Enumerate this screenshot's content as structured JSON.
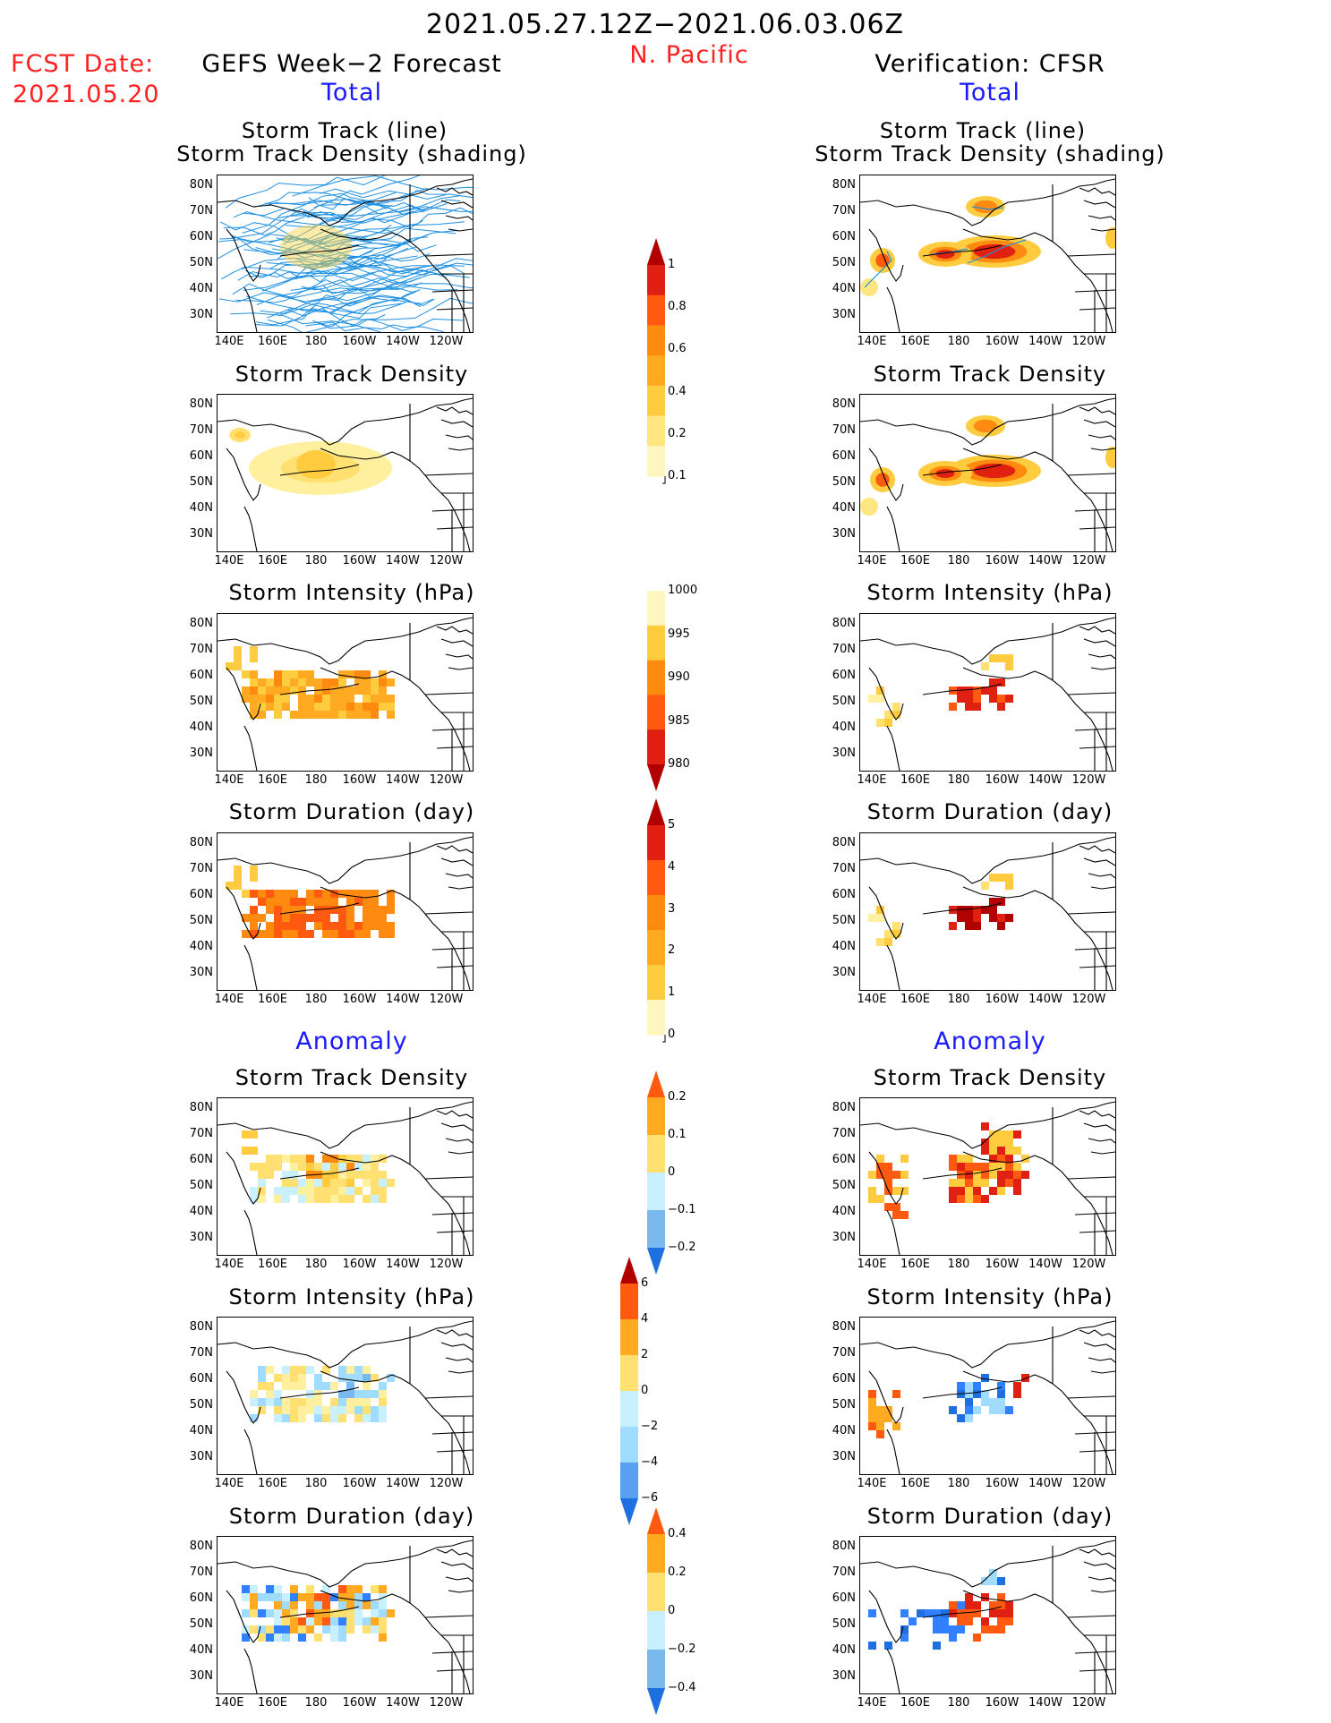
{
  "header": {
    "date_range": "2021.05.27.12Z−2021.06.03.06Z",
    "region": "N. Pacific",
    "fcst_label": "FCST Date:",
    "fcst_date": "2021.05.20",
    "left_title": "GEFS Week−2 Forecast",
    "right_title": "Verification: CFSR",
    "total_label": "Total",
    "anomaly_label": "Anomaly"
  },
  "panel_titles": {
    "track_line": "Storm Track (line)",
    "track_density_shading": "Storm Track Density (shading)",
    "track_density": "Storm Track Density",
    "intensity": "Storm Intensity (hPa)",
    "duration": "Storm Duration (day)"
  },
  "axes": {
    "lat_labels": [
      "80N",
      "70N",
      "60N",
      "50N",
      "40N",
      "30N"
    ],
    "lon_labels": [
      "140E",
      "160E",
      "180",
      "160W",
      "140W",
      "120W"
    ]
  },
  "colorbars": {
    "density_total": [
      "1",
      "0.8",
      "0.6",
      "0.4",
      "0.2",
      "0.1"
    ],
    "intensity_total": [
      "1000",
      "995",
      "990",
      "985",
      "980"
    ],
    "duration_total": [
      "5",
      "4",
      "3",
      "2",
      "1",
      "0"
    ],
    "density_anom": [
      "0.2",
      "0.1",
      "0",
      "−0.1",
      "−0.2"
    ],
    "intensity_anom": [
      "6",
      "4",
      "2",
      "0",
      "−2",
      "−4",
      "−6"
    ],
    "duration_anom": [
      "0.4",
      "0.2",
      "0",
      "−0.2",
      "−0.4"
    ]
  },
  "colors": {
    "title_red": "#ff2020",
    "label_blue": "#1a1aff",
    "track_line": "#1e90e0",
    "coast": "#000000"
  }
}
